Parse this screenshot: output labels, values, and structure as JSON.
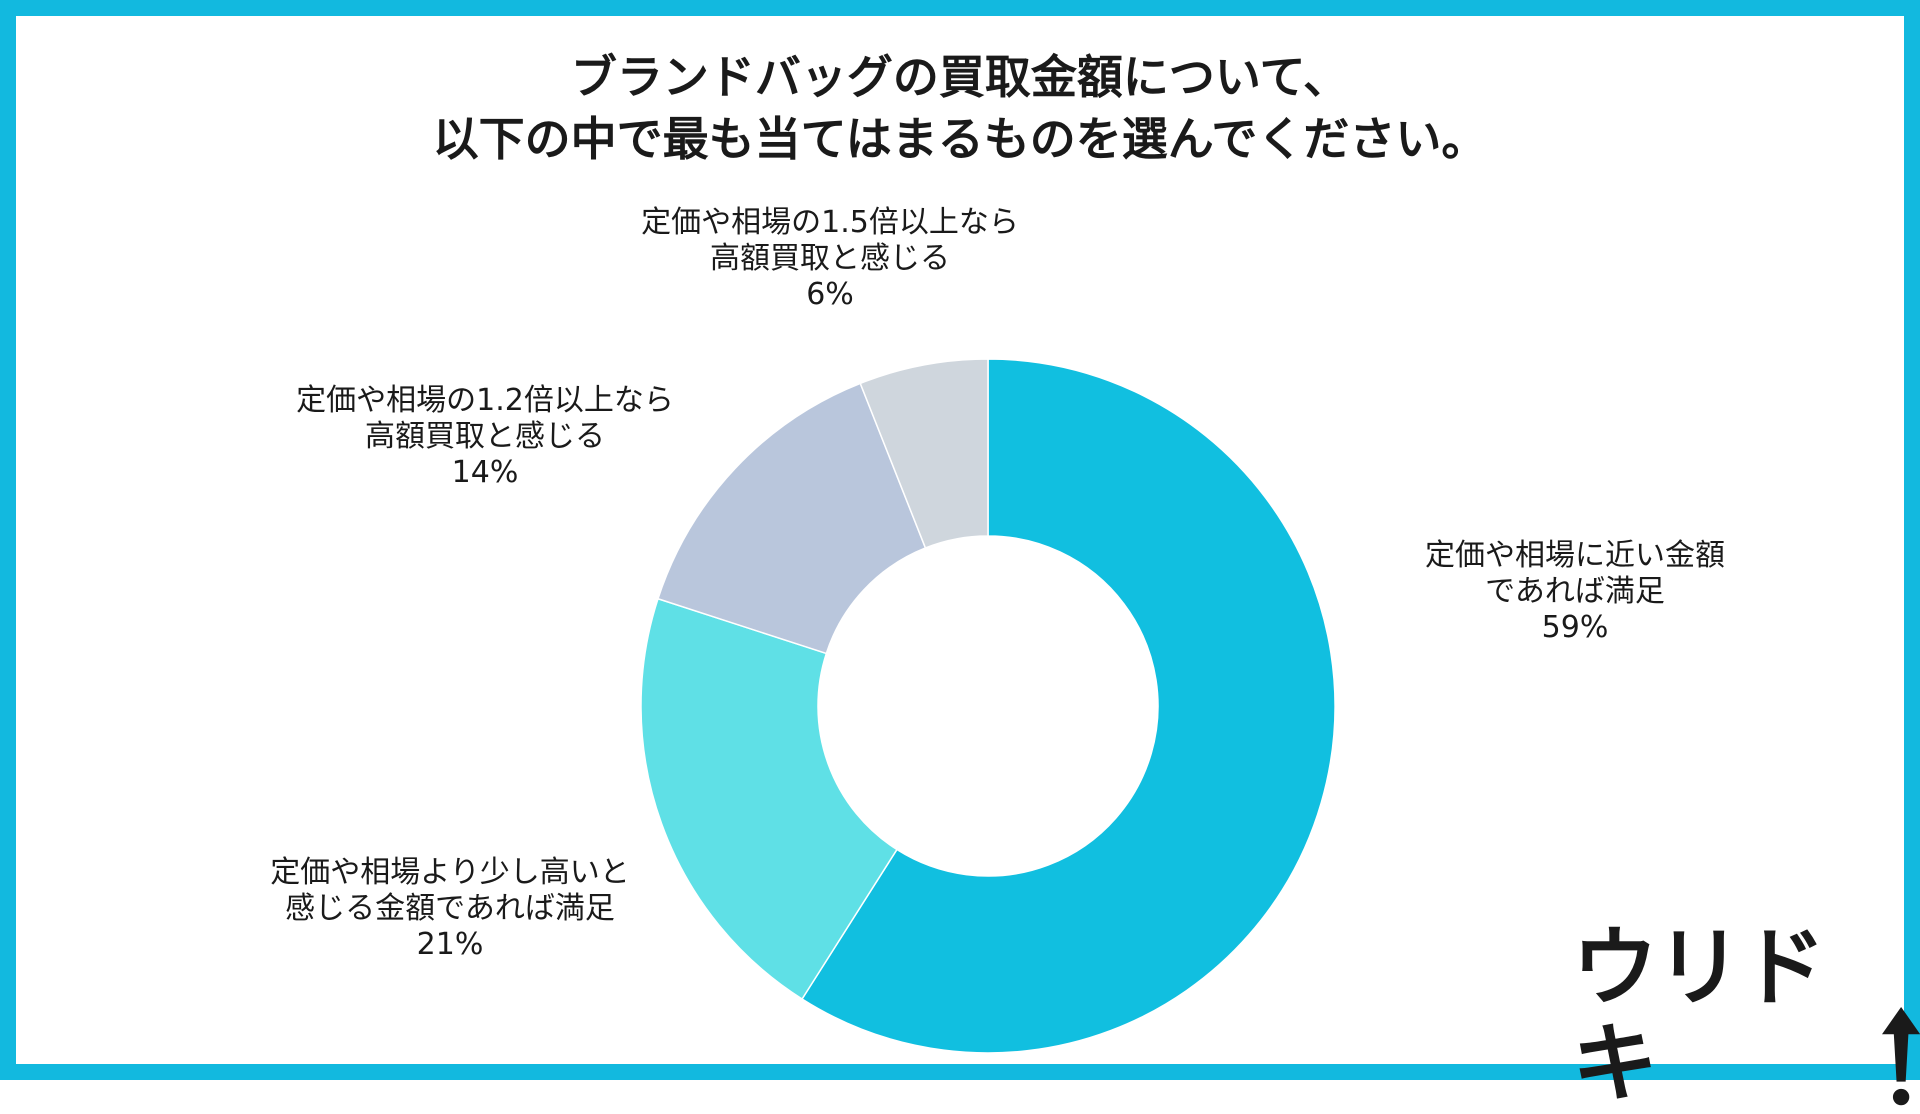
{
  "title": {
    "line1": "ブランドバッグの買取金額について、",
    "line2": "以下の中で最も当てはまるものを選んでください。"
  },
  "colors": {
    "frame": "#12b9df",
    "background": "#ffffff",
    "text": "#1a1a1a"
  },
  "chart_data": {
    "type": "donut",
    "start_angle": "12 o'clock",
    "direction": "clockwise",
    "slices": [
      {
        "line1": "定価や相場に近い金額",
        "line2": "であれば満足",
        "percent_label": "59%",
        "value": 59,
        "color": "#11bfe0"
      },
      {
        "line1": "定価や相場より少し高いと",
        "line2": "感じる金額であれば満足",
        "percent_label": "21%",
        "value": 21,
        "color": "#5fe0e6"
      },
      {
        "line1": "定価や相場の1.2倍以上なら",
        "line2": "高額買取と感じる",
        "percent_label": "14%",
        "value": 14,
        "color": "#b9c6dc"
      },
      {
        "line1": "定価や相場の1.5倍以上なら",
        "line2": "高額買取と感じる",
        "percent_label": "6%",
        "value": 6,
        "color": "#cfd6dd"
      }
    ]
  },
  "logo": {
    "text": "ウリドキ",
    "mark": "up-arrow-exclamation-icon"
  }
}
